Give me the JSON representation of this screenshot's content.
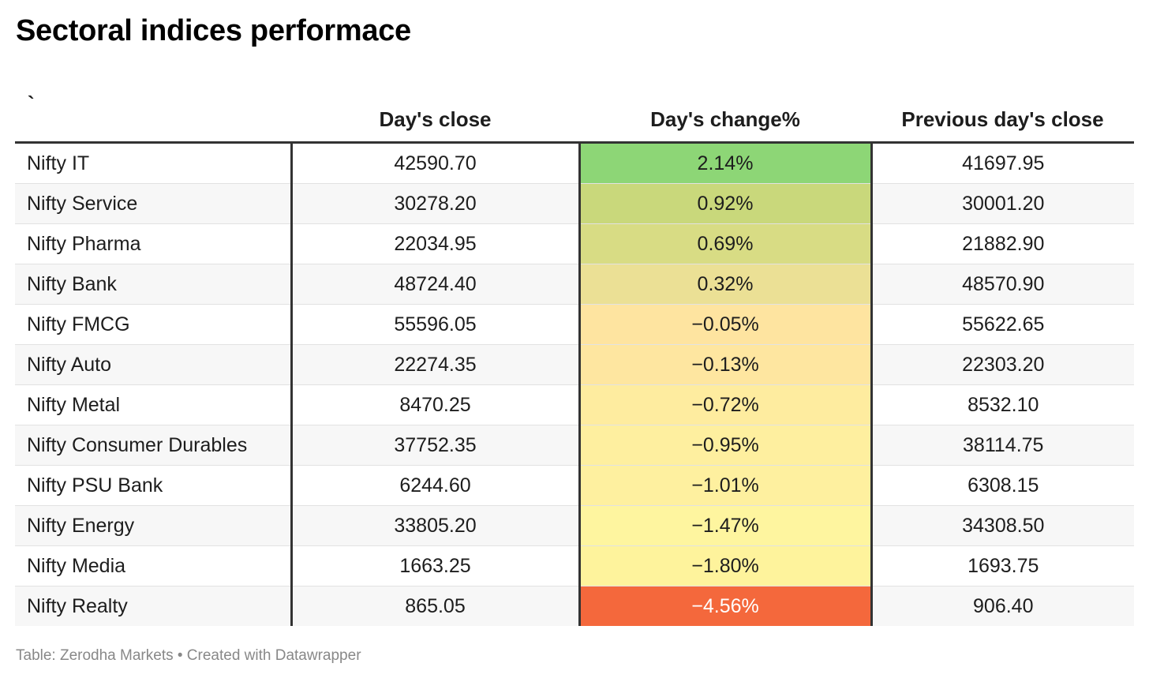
{
  "title": "Sectoral indices performace",
  "footer": "Table: Zerodha Markets • Created with Datawrapper",
  "chart_data": {
    "type": "table",
    "columns": [
      "`",
      "Day's close",
      "Day's change%",
      "Previous day's close"
    ],
    "rows": [
      {
        "name": "Nifty IT",
        "close": "42590.70",
        "change": "2.14%",
        "prev": "41697.95",
        "color": "#8dd676",
        "text": "#1d1d1d"
      },
      {
        "name": "Nifty Service",
        "close": "30278.20",
        "change": "0.92%",
        "prev": "30001.20",
        "color": "#c9d87b",
        "text": "#1d1d1d"
      },
      {
        "name": "Nifty Pharma",
        "close": "22034.95",
        "change": "0.69%",
        "prev": "21882.90",
        "color": "#d8dc84",
        "text": "#1d1d1d"
      },
      {
        "name": "Nifty Bank",
        "close": "48724.40",
        "change": "0.32%",
        "prev": "48570.90",
        "color": "#ebe095",
        "text": "#1d1d1d"
      },
      {
        "name": "Nifty FMCG",
        "close": "55596.05",
        "change": "−0.05%",
        "prev": "55622.65",
        "color": "#fee4a0",
        "text": "#1d1d1d"
      },
      {
        "name": "Nifty Auto",
        "close": "22274.35",
        "change": "−0.13%",
        "prev": "22303.20",
        "color": "#fee6a0",
        "text": "#1d1d1d"
      },
      {
        "name": "Nifty Metal",
        "close": "8470.25",
        "change": "−0.72%",
        "prev": "8532.10",
        "color": "#feec9f",
        "text": "#1d1d1d"
      },
      {
        "name": "Nifty Consumer Durables",
        "close": "37752.35",
        "change": "−0.95%",
        "prev": "38114.75",
        "color": "#feef9f",
        "text": "#1d1d1d"
      },
      {
        "name": "Nifty PSU Bank",
        "close": "6244.60",
        "change": "−1.01%",
        "prev": "6308.15",
        "color": "#fef09f",
        "text": "#1d1d1d"
      },
      {
        "name": "Nifty Energy",
        "close": "33805.20",
        "change": "−1.47%",
        "prev": "34308.50",
        "color": "#fef59f",
        "text": "#1d1d1d"
      },
      {
        "name": "Nifty Media",
        "close": "1663.25",
        "change": "−1.80%",
        "prev": "1693.75",
        "color": "#fef39c",
        "text": "#1d1d1d"
      },
      {
        "name": "Nifty Realty",
        "close": "865.05",
        "change": "−4.56%",
        "prev": "906.40",
        "color": "#f4683c",
        "text": "#ffffff"
      }
    ]
  }
}
